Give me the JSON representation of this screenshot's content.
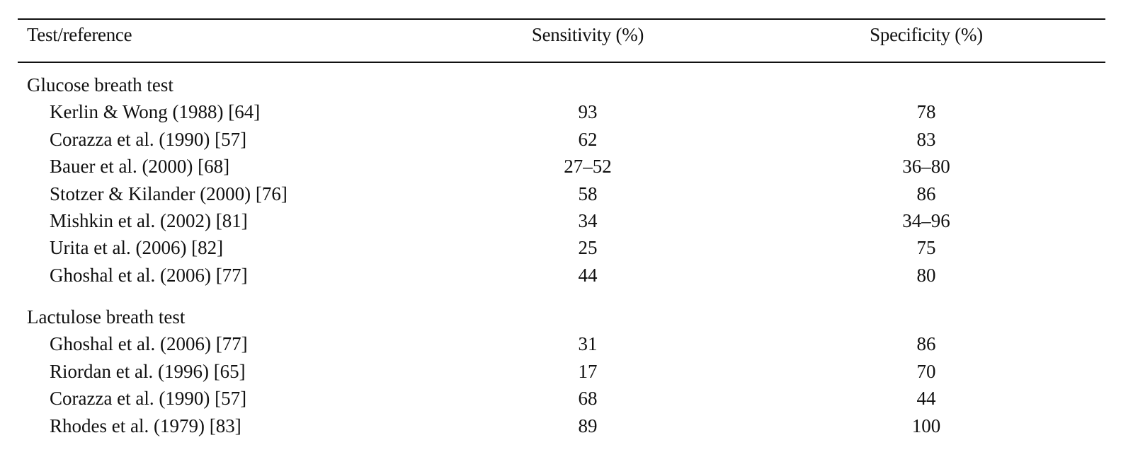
{
  "table": {
    "headers": [
      "Test/reference",
      "Sensitivity (%)",
      "Specificity (%)"
    ],
    "groups": [
      {
        "title": "Glucose breath test",
        "rows": [
          {
            "reference": "Kerlin & Wong (1988) [64]",
            "sensitivity": "93",
            "specificity": "78"
          },
          {
            "reference": "Corazza et al. (1990) [57]",
            "sensitivity": "62",
            "specificity": "83"
          },
          {
            "reference": "Bauer et al. (2000) [68]",
            "sensitivity": "27–52",
            "specificity": "36–80"
          },
          {
            "reference": "Stotzer & Kilander (2000) [76]",
            "sensitivity": "58",
            "specificity": "86"
          },
          {
            "reference": "Mishkin et al. (2002) [81]",
            "sensitivity": "34",
            "specificity": "34–96"
          },
          {
            "reference": "Urita et al. (2006) [82]",
            "sensitivity": "25",
            "specificity": "75"
          },
          {
            "reference": "Ghoshal et al. (2006) [77]",
            "sensitivity": "44",
            "specificity": "80"
          }
        ]
      },
      {
        "title": "Lactulose breath test",
        "rows": [
          {
            "reference": "Ghoshal et al. (2006) [77]",
            "sensitivity": "31",
            "specificity": "86"
          },
          {
            "reference": "Riordan et al. (1996) [65]",
            "sensitivity": "17",
            "specificity": "70"
          },
          {
            "reference": "Corazza et al. (1990) [57]",
            "sensitivity": "68",
            "specificity": "44"
          },
          {
            "reference": "Rhodes et al. (1979) [83]",
            "sensitivity": "89",
            "specificity": "100"
          }
        ]
      }
    ]
  }
}
